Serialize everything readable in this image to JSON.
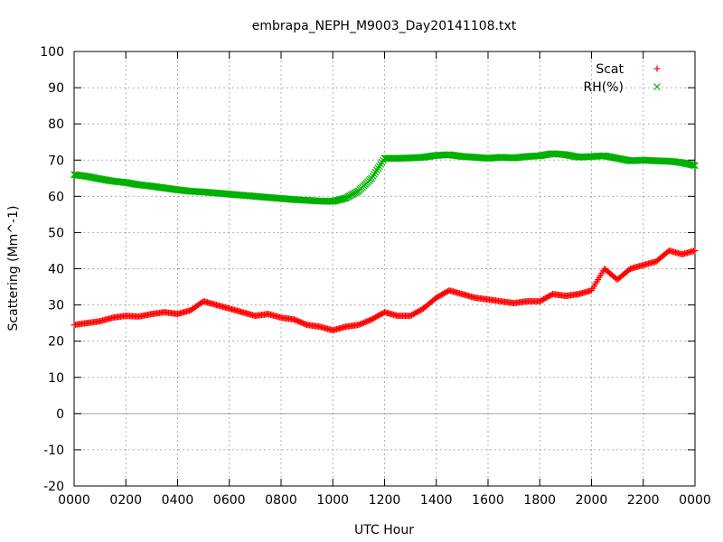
{
  "chart_data": {
    "type": "scatter",
    "title": "embrapa_NEPH_M9003_Day20141108.txt",
    "xlabel": "UTC Hour",
    "ylabel": "Scattering (Mm^-1)",
    "xlim": [
      0,
      24
    ],
    "ylim": [
      -20,
      100
    ],
    "x_ticks": [
      0,
      2,
      4,
      6,
      8,
      10,
      12,
      14,
      16,
      18,
      20,
      22,
      24
    ],
    "x_tick_labels": [
      "0000",
      "0200",
      "0400",
      "0600",
      "0800",
      "1000",
      "1200",
      "1400",
      "1600",
      "1800",
      "2000",
      "2200",
      "0000"
    ],
    "y_ticks": [
      -20,
      -10,
      0,
      10,
      20,
      30,
      40,
      50,
      60,
      70,
      80,
      90,
      100
    ],
    "grid": true,
    "zero_line": true,
    "legend_position": "top-right",
    "series": [
      {
        "name": "Scat",
        "marker": "+",
        "color": "#ff0000",
        "x": [
          0,
          0.5,
          1,
          1.5,
          2,
          2.5,
          3,
          3.5,
          4,
          4.5,
          5,
          5.5,
          6,
          6.5,
          7,
          7.5,
          8,
          8.5,
          9,
          9.5,
          10,
          10.5,
          11,
          11.5,
          12,
          12.5,
          13,
          13.5,
          14,
          14.5,
          15,
          15.5,
          16,
          16.5,
          17,
          17.5,
          18,
          18.5,
          19,
          19.5,
          20,
          20.5,
          21,
          21.5,
          22,
          22.5,
          23,
          23.5,
          24
        ],
        "y": [
          24.5,
          25,
          25.5,
          26.5,
          27,
          26.8,
          27.5,
          28,
          27.5,
          28.5,
          31,
          30,
          29,
          28,
          27,
          27.5,
          26.5,
          26,
          24.5,
          24,
          23,
          24,
          24.5,
          26,
          28,
          27,
          27,
          29,
          32,
          34,
          33,
          32,
          31.5,
          31,
          30.5,
          31,
          31,
          33,
          32.5,
          33,
          34,
          40,
          37,
          40,
          41,
          42,
          45,
          44,
          45
        ]
      },
      {
        "name": "RH(%)",
        "marker": "x",
        "color": "#00b000",
        "x": [
          0,
          0.5,
          1,
          1.5,
          2,
          2.5,
          3,
          3.5,
          4,
          4.5,
          5,
          5.5,
          6,
          6.5,
          7,
          7.5,
          8,
          8.5,
          9,
          9.5,
          10,
          10.5,
          11,
          11.5,
          12,
          12.5,
          13,
          13.5,
          14,
          14.5,
          15,
          15.5,
          16,
          16.5,
          17,
          17.5,
          18,
          18.5,
          19,
          19.5,
          20,
          20.5,
          21,
          21.5,
          22,
          22.5,
          23,
          23.5,
          24
        ],
        "y": [
          66,
          65.5,
          64.8,
          64.2,
          63.8,
          63.2,
          62.8,
          62.3,
          61.8,
          61.4,
          61.2,
          60.9,
          60.6,
          60.3,
          60,
          59.7,
          59.4,
          59.1,
          58.9,
          58.7,
          58.6,
          59.5,
          61.5,
          65,
          70.5,
          70.5,
          70.6,
          70.8,
          71.3,
          71.5,
          71,
          70.8,
          70.5,
          70.8,
          70.6,
          71,
          71.2,
          71.8,
          71.5,
          70.8,
          71,
          71.2,
          70.5,
          69.8,
          70,
          69.8,
          69.7,
          69.3,
          68.5
        ]
      }
    ]
  }
}
